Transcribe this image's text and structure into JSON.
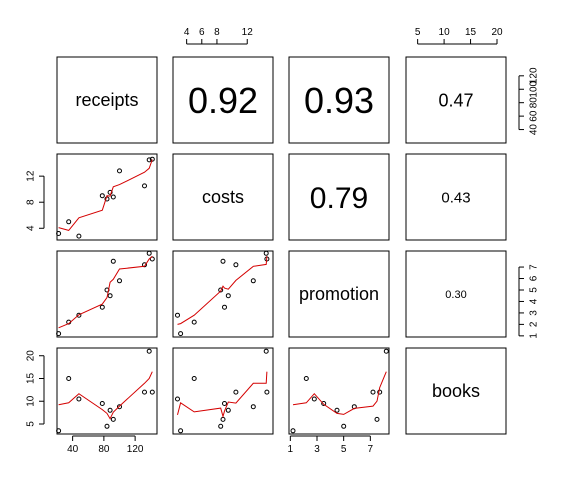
{
  "chart_data": {
    "type": "scatter",
    "variables": [
      "receipts",
      "costs",
      "promotion",
      "books"
    ],
    "observations": {
      "receipts": [
        22,
        35,
        48,
        78,
        84,
        88,
        92,
        100,
        132,
        138,
        142
      ],
      "costs": [
        3.2,
        5.0,
        2.8,
        9.0,
        8.5,
        9.5,
        8.8,
        12.8,
        10.5,
        14.5,
        14.6
      ],
      "promotion": [
        1.2,
        2.2,
        2.8,
        3.5,
        5.0,
        4.5,
        7.5,
        5.8,
        7.2,
        8.2,
        7.7
      ],
      "books": [
        3.5,
        15.0,
        10.5,
        9.5,
        4.5,
        8.0,
        6.0,
        8.8,
        12.0,
        21.0,
        12.0
      ]
    },
    "correlations": [
      {
        "row": "receipts",
        "col": "costs",
        "value": "0.92"
      },
      {
        "row": "receipts",
        "col": "promotion",
        "value": "0.93"
      },
      {
        "row": "receipts",
        "col": "books",
        "value": "0.47"
      },
      {
        "row": "costs",
        "col": "promotion",
        "value": "0.79"
      },
      {
        "row": "costs",
        "col": "books",
        "value": "0.43"
      },
      {
        "row": "promotion",
        "col": "books",
        "value": "0.30"
      }
    ],
    "axes": {
      "receipts": {
        "lim": [
          20,
          148
        ],
        "ticks": [
          40,
          80,
          120
        ]
      },
      "costs": {
        "lim": [
          2.2,
          15.4
        ],
        "ticks": [
          4,
          6,
          8,
          10,
          12
        ]
      },
      "promotion": {
        "lim": [
          0.9,
          8.4
        ],
        "ticks": [
          1,
          3,
          5,
          7
        ]
      },
      "books": {
        "lim": [
          2.8,
          21.7
        ],
        "ticks": [
          5,
          10,
          15,
          20
        ]
      }
    },
    "tick_labels": {
      "top_costs": [
        "4",
        "6",
        "8",
        "12"
      ],
      "top_books": [
        "5",
        "10",
        "15",
        "20"
      ],
      "right_receipts": [
        "40",
        "60",
        "80",
        "100",
        "120"
      ],
      "right_promotion": [
        "1",
        "2",
        "3",
        "4",
        "5",
        "6",
        "7"
      ],
      "left_costs": [
        "4",
        "8",
        "12"
      ],
      "left_books": [
        "5",
        "10",
        "15",
        "20"
      ],
      "bottom_receipts": [
        "40",
        "80",
        "120"
      ],
      "bottom_promotion": [
        "1",
        "3",
        "5",
        "7"
      ]
    },
    "smoother_color": "#d40000",
    "grid": false
  }
}
